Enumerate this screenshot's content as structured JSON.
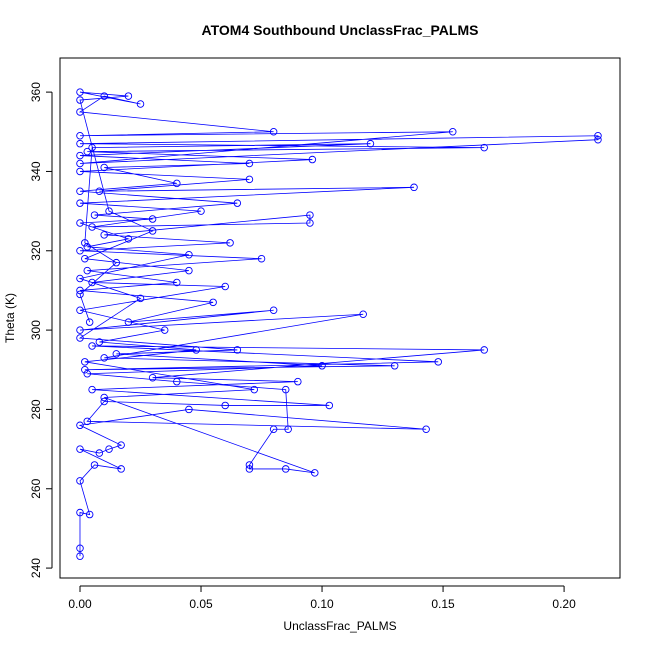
{
  "chart_data": {
    "type": "line",
    "title": "ATOM4 Southbound UnclassFrac_PALMS",
    "xlabel": "UnclassFrac_PALMS",
    "ylabel": "Theta (K)",
    "color": "#0000ff",
    "markers": true,
    "x": [
      0.0,
      0.0,
      0.0,
      0.004,
      0.0,
      0.006,
      0.017,
      0.0,
      0.008,
      0.012,
      0.017,
      0.0,
      0.045,
      0.143,
      0.003,
      0.01,
      0.06,
      0.103,
      0.005,
      0.09,
      0.03,
      0.167,
      0.005,
      0.148,
      0.002,
      0.13,
      0.01,
      0.117,
      0.0,
      0.08,
      0.02,
      0.055,
      0.0,
      0.04,
      0.003,
      0.075,
      0.0,
      0.062,
      0.01,
      0.095,
      0.095,
      0.005,
      0.05,
      0.0,
      0.138,
      0.008,
      0.07,
      0.0,
      0.096,
      0.003,
      0.167,
      0.0,
      0.214,
      0.214,
      0.0,
      0.154,
      0.0,
      0.08,
      0.0,
      0.01,
      0.025,
      0.0,
      0.02,
      0.0,
      0.012,
      0.03,
      0.002,
      0.045,
      0.005,
      0.06,
      0.0,
      0.035,
      0.008,
      0.048,
      0.002,
      0.072,
      0.01,
      0.097,
      0.085,
      0.07,
      0.07,
      0.08,
      0.086,
      0.085,
      0.04,
      0.003,
      0.1,
      0.015,
      0.065,
      0.0,
      0.025,
      0.0,
      0.045,
      0.003,
      0.02,
      0.0,
      0.03,
      0.006,
      0.065,
      0.0,
      0.04,
      0.01,
      0.07,
      0.0,
      0.12,
      0.005,
      0.002,
      0.015,
      0.0,
      0.004
    ],
    "y": [
      243,
      245,
      254,
      253.5,
      262,
      266,
      265,
      270,
      269,
      270,
      271,
      276,
      280,
      275,
      277,
      282,
      281,
      281,
      285,
      287,
      288,
      295,
      296,
      292,
      290,
      291,
      293,
      304,
      300,
      305,
      302,
      307,
      310,
      312,
      315,
      318,
      320,
      322,
      324,
      329,
      327,
      326,
      330,
      332,
      336,
      335,
      338,
      340,
      343,
      345,
      346,
      347,
      349,
      348,
      342,
      350,
      349,
      350,
      355,
      359,
      357,
      360,
      359,
      358,
      330,
      325,
      318,
      315,
      312,
      311,
      305,
      300,
      297,
      295,
      292,
      285,
      283,
      264,
      265,
      265,
      266,
      275,
      275,
      285,
      287,
      289,
      291,
      294,
      295,
      298,
      308,
      313,
      319,
      321,
      323,
      327,
      328,
      329,
      332,
      335,
      337,
      341,
      342,
      344,
      347,
      346,
      322,
      317,
      309,
      302
    ],
    "xlim": [
      -0.00826,
      0.2231
    ],
    "ylim": [
      237.5,
      368.6
    ],
    "xticks": [
      {
        "value": 0,
        "label": "0.00"
      },
      {
        "value": 0.05,
        "label": "0.05"
      },
      {
        "value": 0.1,
        "label": "0.10"
      },
      {
        "value": 0.15,
        "label": "0.15"
      },
      {
        "value": 0.2,
        "label": "0.20"
      }
    ],
    "yticks": [
      240,
      260,
      280,
      300,
      320,
      340,
      360
    ]
  }
}
